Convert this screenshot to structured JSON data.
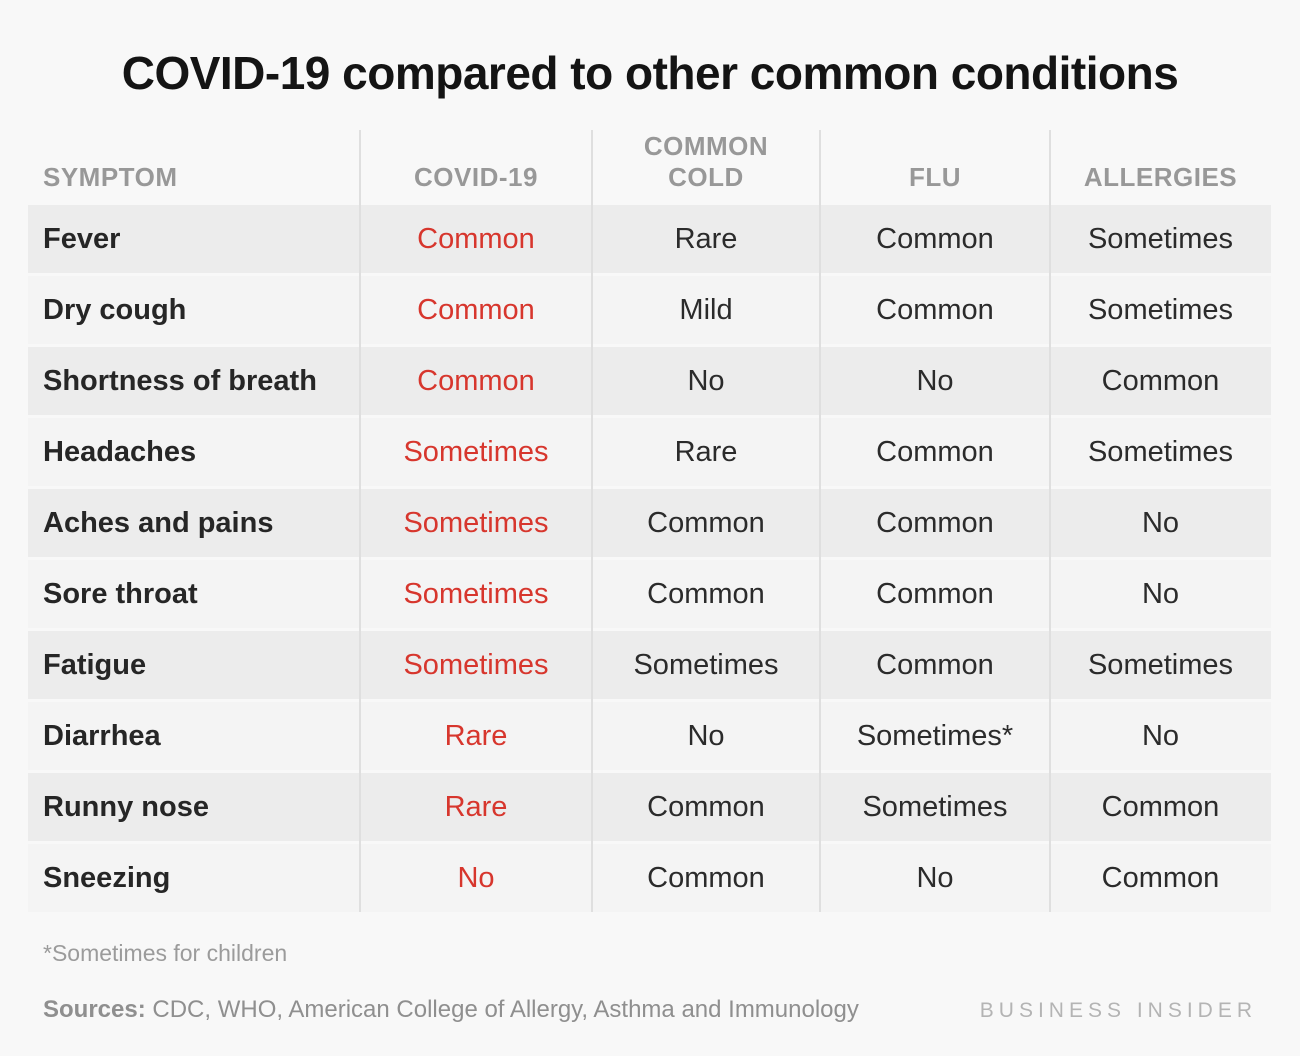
{
  "title": "COVID-19 compared to other common conditions",
  "colors": {
    "accent_red": "#d7362d",
    "row_dark": "#ececec",
    "row_light": "#f4f4f4",
    "header_gray": "#989898",
    "brand_gray": "#b4b4b4"
  },
  "chart_data": {
    "type": "table",
    "title": "COVID-19 compared to other common conditions",
    "columns": [
      "SYMPTOM",
      "COVID-19",
      "COMMON COLD",
      "FLU",
      "ALLERGIES"
    ],
    "highlight_column": "COVID-19",
    "highlight_color": "#d7362d",
    "rows": [
      {
        "symptom": "Fever",
        "covid19": "Common",
        "common_cold": "Rare",
        "flu": "Common",
        "allergies": "Sometimes"
      },
      {
        "symptom": "Dry cough",
        "covid19": "Common",
        "common_cold": "Mild",
        "flu": "Common",
        "allergies": "Sometimes"
      },
      {
        "symptom": "Shortness of breath",
        "covid19": "Common",
        "common_cold": "No",
        "flu": "No",
        "allergies": "Common"
      },
      {
        "symptom": "Headaches",
        "covid19": "Sometimes",
        "common_cold": "Rare",
        "flu": "Common",
        "allergies": "Sometimes"
      },
      {
        "symptom": "Aches and pains",
        "covid19": "Sometimes",
        "common_cold": "Common",
        "flu": "Common",
        "allergies": "No"
      },
      {
        "symptom": "Sore throat",
        "covid19": "Sometimes",
        "common_cold": "Common",
        "flu": "Common",
        "allergies": "No"
      },
      {
        "symptom": "Fatigue",
        "covid19": "Sometimes",
        "common_cold": "Sometimes",
        "flu": "Common",
        "allergies": "Sometimes"
      },
      {
        "symptom": "Diarrhea",
        "covid19": "Rare",
        "common_cold": "No",
        "flu": "Sometimes*",
        "allergies": "No"
      },
      {
        "symptom": "Runny nose",
        "covid19": "Rare",
        "common_cold": "Common",
        "flu": "Sometimes",
        "allergies": "Common"
      },
      {
        "symptom": "Sneezing",
        "covid19": "No",
        "common_cold": "Common",
        "flu": "No",
        "allergies": "Common"
      }
    ]
  },
  "footer": {
    "footnote": "*Sometimes for children",
    "sources_label": "Sources:",
    "sources_text": " CDC, WHO,  American College of Allergy, Asthma and Immunology",
    "brand": "BUSINESS INSIDER"
  }
}
